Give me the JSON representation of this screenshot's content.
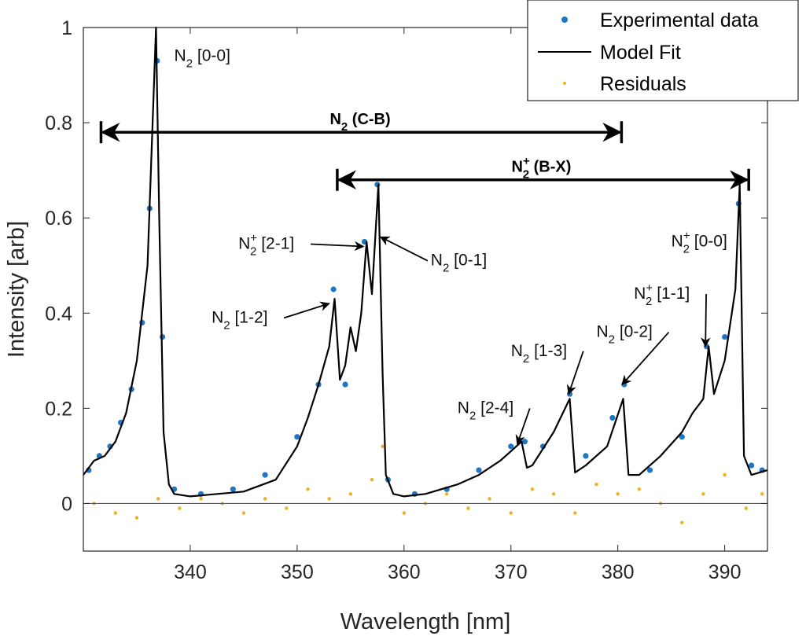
{
  "chart_data": {
    "type": "line",
    "xlabel": "Wavelength [nm]",
    "ylabel": "Intensity [arb]",
    "xlim": [
      330,
      394
    ],
    "ylim": [
      -0.1,
      1.0
    ],
    "xticks": [
      340,
      350,
      360,
      370,
      380,
      390
    ],
    "yticks": [
      0,
      0.2,
      0.4,
      0.6,
      0.8,
      1
    ],
    "ytick_labels": [
      "0",
      "0.2",
      "0.4",
      "0.6",
      "0.8",
      "1"
    ],
    "legend": {
      "position": "top-right",
      "entries": [
        "Experimental data",
        "Model Fit",
        "Residuals"
      ]
    },
    "colors": {
      "experimental": "#1f77c4",
      "fit": "#000000",
      "residuals": "#edb120",
      "zero_line": "#555555"
    },
    "series": [
      {
        "name": "Model Fit",
        "kind": "line",
        "x": [
          330,
          331,
          332,
          333,
          334,
          335,
          336,
          336.8,
          337.1,
          337.5,
          338,
          338.5,
          340,
          345,
          348,
          350,
          351,
          352,
          353,
          353.5,
          354,
          354.5,
          355,
          355.5,
          356,
          356.5,
          357,
          357.6,
          358,
          358.3,
          359,
          360,
          362,
          365,
          367,
          368,
          369,
          370,
          371,
          371.5,
          372,
          374,
          375.5,
          376,
          377,
          379,
          380.5,
          381,
          382,
          384,
          386,
          387,
          388,
          388.5,
          389,
          390,
          391,
          391.4,
          391.8,
          392.5,
          394
        ],
        "y": [
          0.06,
          0.09,
          0.1,
          0.13,
          0.19,
          0.3,
          0.5,
          1.0,
          0.6,
          0.15,
          0.04,
          0.02,
          0.015,
          0.025,
          0.05,
          0.12,
          0.18,
          0.25,
          0.33,
          0.43,
          0.26,
          0.29,
          0.37,
          0.32,
          0.4,
          0.55,
          0.44,
          0.67,
          0.27,
          0.06,
          0.02,
          0.015,
          0.02,
          0.04,
          0.06,
          0.075,
          0.09,
          0.11,
          0.13,
          0.075,
          0.08,
          0.15,
          0.22,
          0.065,
          0.08,
          0.12,
          0.22,
          0.06,
          0.06,
          0.1,
          0.15,
          0.19,
          0.22,
          0.33,
          0.23,
          0.3,
          0.45,
          0.67,
          0.1,
          0.06,
          0.07
        ]
      },
      {
        "name": "Experimental data",
        "kind": "scatter",
        "x": [
          330.5,
          331.5,
          332.5,
          333.5,
          334.5,
          335.5,
          336.2,
          336.9,
          337.4,
          338.5,
          341,
          344,
          347,
          350,
          352,
          353.4,
          354.5,
          356.3,
          357.5,
          358.5,
          361,
          364,
          367,
          370,
          371.3,
          373,
          375.5,
          377,
          379.5,
          380.6,
          383,
          386,
          388.3,
          390,
          391.3,
          392.5,
          393.5
        ],
        "y": [
          0.07,
          0.1,
          0.12,
          0.17,
          0.24,
          0.38,
          0.62,
          0.93,
          0.35,
          0.03,
          0.02,
          0.03,
          0.06,
          0.14,
          0.25,
          0.45,
          0.25,
          0.55,
          0.67,
          0.05,
          0.02,
          0.03,
          0.07,
          0.12,
          0.13,
          0.12,
          0.23,
          0.1,
          0.18,
          0.25,
          0.07,
          0.14,
          0.33,
          0.35,
          0.63,
          0.08,
          0.07
        ]
      },
      {
        "name": "Residuals",
        "kind": "scatter",
        "x": [
          331,
          333,
          335,
          337,
          339,
          341,
          343,
          345,
          347,
          349,
          351,
          353,
          355,
          357,
          358,
          360,
          362,
          364,
          366,
          368,
          370,
          372,
          374,
          376,
          378,
          380,
          382,
          384,
          386,
          388,
          390,
          392,
          393.5
        ],
        "y": [
          0.0,
          -0.02,
          -0.03,
          0.01,
          -0.01,
          0.01,
          0.0,
          -0.02,
          0.01,
          -0.01,
          0.03,
          0.01,
          0.02,
          0.05,
          0.12,
          -0.02,
          0.0,
          0.02,
          -0.01,
          0.01,
          -0.02,
          0.03,
          0.02,
          -0.02,
          0.04,
          0.02,
          0.03,
          0.0,
          -0.04,
          0.02,
          0.06,
          -0.01,
          0.02
        ]
      }
    ],
    "ranges": [
      {
        "label_main": "N",
        "label_sub": "2",
        "label_sup": "",
        "label_rest": " (C-B)",
        "x_start": 331.8,
        "x_end": 380.2,
        "y": 0.78
      },
      {
        "label_main": "N",
        "label_sub": "2",
        "label_sup": "+",
        "label_rest": " (B-X)",
        "x_start": 353.9,
        "x_end": 392.1,
        "y": 0.68
      }
    ],
    "annotations": [
      {
        "main": "N",
        "sub": "2",
        "sup": "",
        "rest": " [0-0]",
        "x": 338.5,
        "y": 0.93,
        "arrow": false
      },
      {
        "main": "N",
        "sub": "2",
        "sup": "+",
        "rest": " [2-1]",
        "x": 344.5,
        "y": 0.535,
        "arrow": true,
        "ax": 356.2,
        "ay": 0.54
      },
      {
        "main": "N",
        "sub": "2",
        "sup": "",
        "rest": " [0-1]",
        "x": 362.5,
        "y": 0.5,
        "arrow": true,
        "ax": 357.8,
        "ay": 0.56
      },
      {
        "main": "N",
        "sub": "2",
        "sup": "",
        "rest": " [1-2]",
        "x": 342.0,
        "y": 0.38,
        "arrow": true,
        "ax": 353.0,
        "ay": 0.42
      },
      {
        "main": "N",
        "sub": "2",
        "sup": "+",
        "rest": " [0-0]",
        "x": 385.0,
        "y": 0.54,
        "arrow": false
      },
      {
        "main": "N",
        "sub": "2",
        "sup": "+",
        "rest": " [1-1]",
        "x": 381.5,
        "y": 0.43,
        "arrow": true,
        "ax": 388.2,
        "ay": 0.33
      },
      {
        "main": "N",
        "sub": "2",
        "sup": "",
        "rest": " [0-2]",
        "x": 378.0,
        "y": 0.35,
        "arrow": true,
        "ax": 380.4,
        "ay": 0.25
      },
      {
        "main": "N",
        "sub": "2",
        "sup": "",
        "rest": " [1-3]",
        "x": 370.0,
        "y": 0.31,
        "arrow": true,
        "ax": 375.4,
        "ay": 0.23
      },
      {
        "main": "N",
        "sub": "2",
        "sup": "",
        "rest": " [2-4]",
        "x": 365.0,
        "y": 0.19,
        "arrow": true,
        "ax": 370.6,
        "ay": 0.125
      }
    ]
  }
}
